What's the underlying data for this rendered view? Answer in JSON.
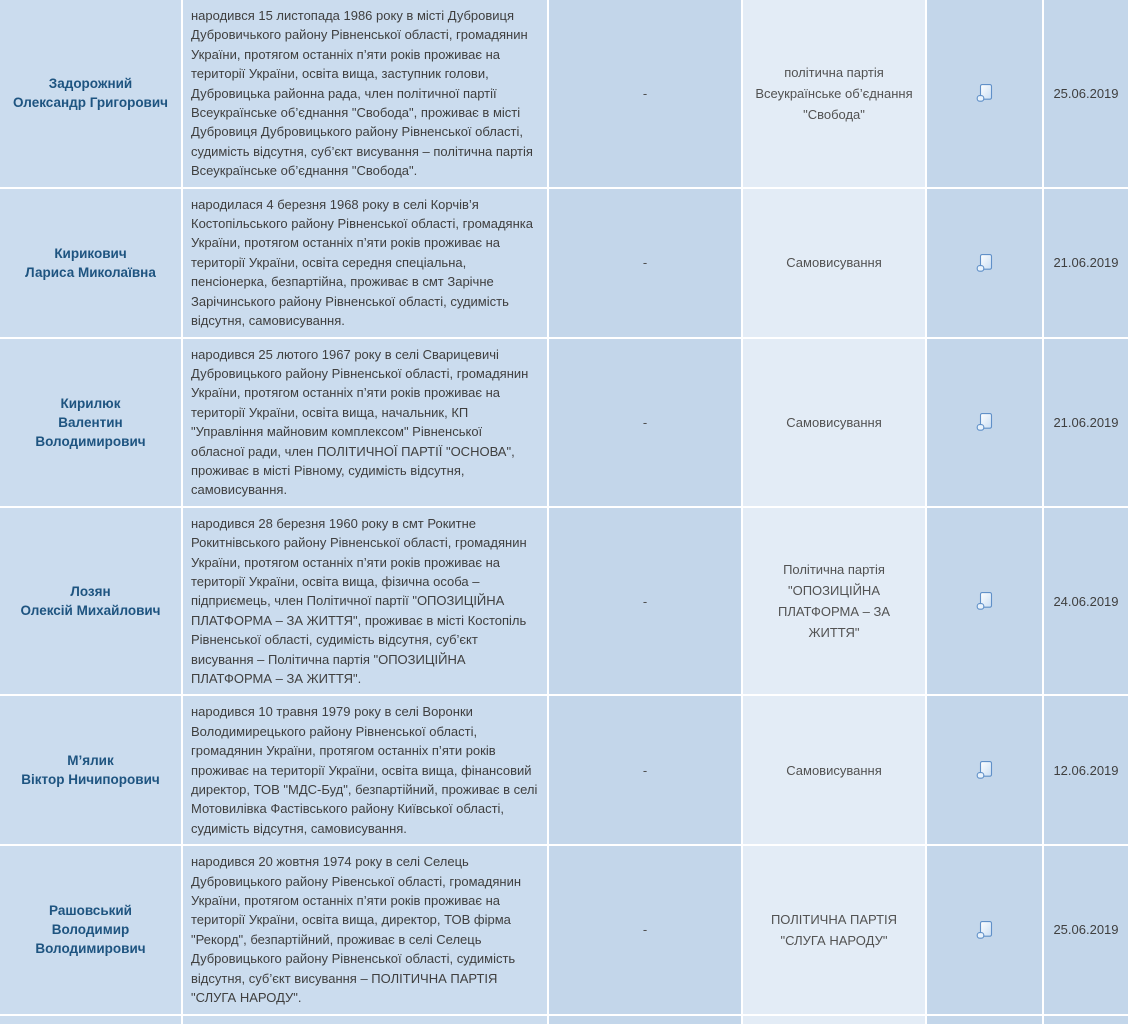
{
  "table": {
    "empty_marker": "-",
    "rows": [
      {
        "name_lines": [
          "Задорожний",
          "Олександр Григорович"
        ],
        "bio": "народився 15 листопада 1986 року в місті Дубровиця Дубровичького району Рівненської області, громадянин України, протягом останніх п’яти років проживає на території України, освіта вища, заступник голови, Дубровицька районна рада, член політичної партії Всеукраїнське об’єднання \"Свобода\", проживає в місті Дубровиця Дубровицького району Рівненської області, судимість відсутня, суб’єкт висування – політична партія Всеукраїнське об’єднання \"Свобода\".",
        "mandate": "-",
        "nominator": "політична партія Всеукраїнське об’єднання \"Свобода\"",
        "date": "25.06.2019"
      },
      {
        "name_lines": [
          "Кирикович",
          "Лариса Миколаївна"
        ],
        "bio": "народилася 4 березня 1968 року в селі Корчів’я Костопільського району Рівненської області, громадянка України, протягом останніх п’яти років проживає на території України, освіта середня спеціальна, пенсіонерка, безпартійна, проживає в смт Зарічне Зарічинського району Рівненської області, судимість відсутня, самовисування.",
        "mandate": "-",
        "nominator": "Самовисування",
        "date": "21.06.2019"
      },
      {
        "name_lines": [
          "Кирилюк",
          "Валентин",
          "Володимирович"
        ],
        "bio": "народився 25 лютого 1967 року в селі Сварицевичі Дубровицького району Рівненської області, громадянин України, протягом останніх п’яти років проживає на території України, освіта вища, начальник, КП \"Управління майновим комплексом\" Рівненської обласної ради, член ПОЛІТИЧНОЇ ПАРТІЇ \"ОСНОВА\", проживає в місті Рівному, судимість відсутня, самовисування.",
        "mandate": "-",
        "nominator": "Самовисування",
        "date": "21.06.2019"
      },
      {
        "name_lines": [
          "Лозян",
          "Олексій Михайлович"
        ],
        "bio": "народився 28 березня 1960 року в смт Рокитне Рокитнівського району Рівненської області, громадянин України, протягом останніх п’яти років проживає на території України, освіта вища, фізична особа – підприємець, член Політичної партії \"ОПОЗИЦІЙНА ПЛАТФОРМА – ЗА ЖИТТЯ\", проживає в місті Костопіль Рівненської області, судимість відсутня, суб’єкт висування – Політична партія \"ОПОЗИЦІЙНА ПЛАТФОРМА – ЗА ЖИТТЯ\".",
        "mandate": "-",
        "nominator": "Політична партія \"ОПОЗИЦІЙНА ПЛАТФОРМА – ЗА ЖИТТЯ\"",
        "date": "24.06.2019"
      },
      {
        "name_lines": [
          "М’ялик",
          "Віктор Ничипорович"
        ],
        "bio": "народився 10 травня 1979 року в селі Воронки Володимирецького району Рівненської області, громадянин України, протягом останніх п’яти років проживає на території України, освіта вища, фінансовий директор, ТОВ \"МДС-Буд\", безпартійний, проживає в селі Мотовилівка Фастівського району Київської області, судимість відсутня, самовисування.",
        "mandate": "-",
        "nominator": "Самовисування",
        "date": "12.06.2019"
      },
      {
        "name_lines": [
          "Рашовський",
          "Володимир",
          "Володимирович"
        ],
        "bio": "народився 20 жовтня 1974 року в селі Селець Дубровицького району Рівенської області, громадянин України, протягом останніх п’яти років проживає на території України, освіта вища, директор, ТОВ фірма \"Рекорд\", безпартійний, проживає в селі Селець Дубровицького району Рівненської області, судимість відсутня, суб’єкт висування – ПОЛІТИЧНА ПАРТІЯ \"СЛУГА НАРОДУ\".",
        "mandate": "-",
        "nominator": "ПОЛІТИЧНА ПАРТІЯ \"СЛУГА НАРОДУ\"",
        "date": "25.06.2019"
      }
    ]
  },
  "icons": {
    "document": "scroll-document-icon"
  },
  "colors": {
    "cell_bg_light": "#cbdcee",
    "cell_bg_medium": "#c3d6ea",
    "cell_bg_pale": "#e3ecf6",
    "name_text": "#1e5480",
    "body_text": "#3f3f3f",
    "secondary_text": "#525252",
    "row_separator": "#ffffff",
    "icon_stroke": "#6090c8"
  }
}
